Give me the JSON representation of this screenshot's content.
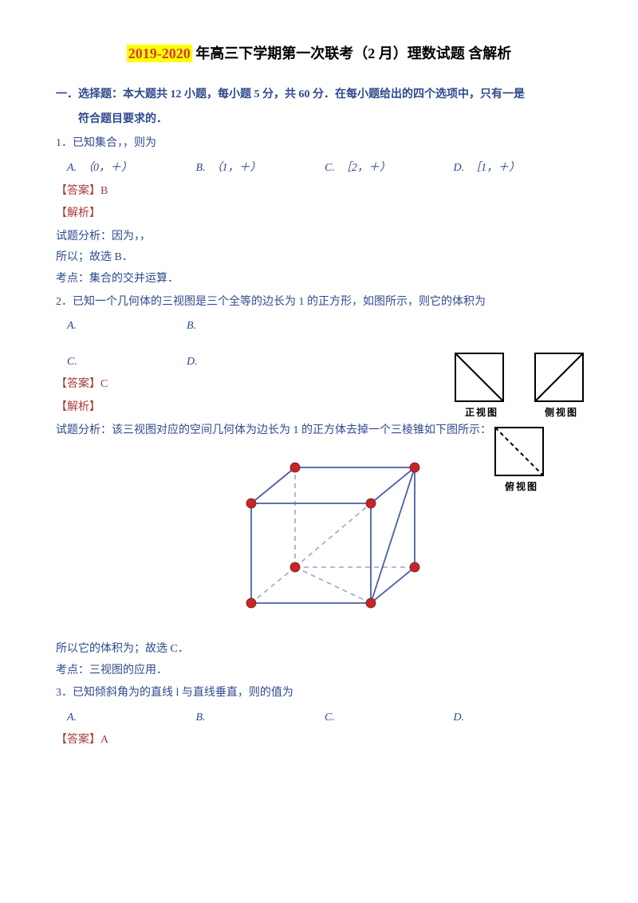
{
  "title": {
    "highlight": "2019-2020",
    "rest": " 年高三下学期第一次联考（2 月）理数试题 含解析"
  },
  "sectionHead1": "一．选择题：本大题共 12 小题，每小题 5 分，共 60 分．在每小题给出的四个选项中，只有一是",
  "sectionHead2": "符合题目要求的．",
  "q1": {
    "stem": "1．已知集合，，则为",
    "A": "（0，＋）",
    "B": "（1，＋）",
    "C": "［2，＋）",
    "D": "［1，＋）",
    "answer": "【答案】B",
    "analysisLabel": "【解析】",
    "line1": "试题分析：因为，，",
    "line2": "所以；故选 B．",
    "point": "考点：集合的交并运算．"
  },
  "q2": {
    "stem": "2．已知一个几何体的三视图是三个全等的边长为 1 的正方形，如图所示，则它的体积为",
    "A": "A.",
    "B": "B.",
    "C": "C.",
    "D": "D.",
    "answer": "【答案】C",
    "analysisLabel": "【解析】",
    "line1": "试题分析：该三视图对应的空间几何体为边长为 1 的正方体去掉一个三棱锥如下图所示：",
    "line2": "所以它的体积为；故选 C．",
    "point": "考点：三视图的应用．",
    "viewLabels": {
      "front": "正视图",
      "side": "侧视图",
      "top": "俯视图"
    }
  },
  "q3": {
    "stem": "3．已知倾斜角为的直线 l 与直线垂直，则的值为",
    "A": "A.",
    "B": "B.",
    "C": "C.",
    "D": "D.",
    "answer": "【答案】A"
  },
  "colors": {
    "text": "#2e4a8f",
    "redText": "#a83a3a",
    "titleRed": "#d23a3a",
    "highlightBg": "#ffff00",
    "cubeLine": "#4a5fa3",
    "cubeDash": "#9aa6cc",
    "vertex": "#c3272b",
    "black": "#000000"
  }
}
